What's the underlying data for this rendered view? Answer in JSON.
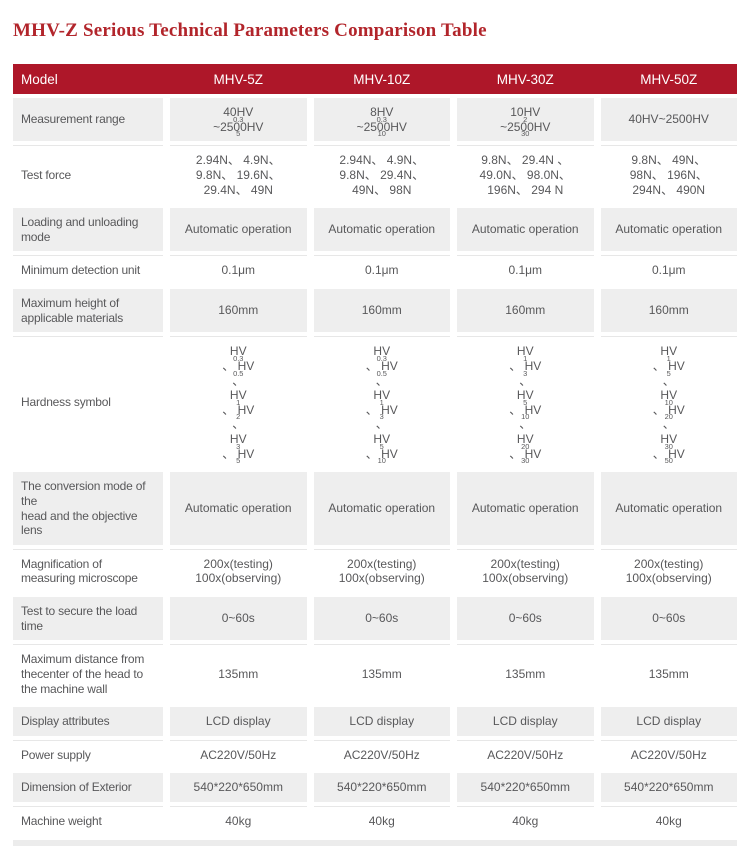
{
  "title": "MHV-Z Serious Technical Parameters Comparison Table",
  "colors": {
    "brand_red": "#ae1729",
    "title_red": "#b2252b",
    "alt_row_bg": "#eeeeee",
    "body_text": "#58585a",
    "header_text": "#ffffff"
  },
  "table": {
    "columns": [
      "Model",
      "MHV-5Z",
      "MHV-10Z",
      "MHV-30Z",
      "MHV-50Z"
    ],
    "rows": [
      {
        "label": "Measurement range",
        "values": [
          "40HV_{0.3}~2500HV_{5}",
          "8HV_{0.3}~2500HV_{10}",
          "10HV_{2}~2500HV_{30}",
          "40HV~2500HV"
        ]
      },
      {
        "label": "Test force",
        "values": [
          "2.94N、 4.9N、\n9.8N、 19.6N、\n29.4N、 49N",
          "2.94N、 4.9N、\n9.8N、 29.4N、\n49N、 98N",
          "9.8N、 29.4N 、\n49.0N、 98.0N、\n196N、 294 N",
          "9.8N、 49N、\n98N、 196N、\n294N、 490N"
        ]
      },
      {
        "label": "Loading and unloading mode",
        "values": [
          "Automatic operation",
          "Automatic operation",
          "Automatic operation",
          "Automatic operation"
        ]
      },
      {
        "label": "Minimum detection unit",
        "values": [
          "0.1μm",
          "0.1μm",
          "0.1μm",
          "0.1μm"
        ]
      },
      {
        "label": "Maximum height of\napplicable materials",
        "values": [
          "160mm",
          "160mm",
          "160mm",
          "160mm"
        ]
      },
      {
        "label": "Hardness symbol",
        "values": [
          "HV_{0.3}、 HV_{0.5}、\nHV_{1}、 HV_{2}、\nHV_{3}、 HV_{5}",
          "HV_{0.3}、 HV_{0.5}、\nHV_{1}、 HV_{3}、\nHV_{5}、 HV_{10}",
          "HV_{1}、 HV_{3}、\nHV_{5}、 HV_{10}、\nHV_{20}、 HV_{30}",
          "HV_{1}、 HV_{5}、\nHV_{10}、 HV_{20}、\nHV_{30}、 HV_{50}"
        ]
      },
      {
        "label": "The conversion mode of the\nhead and the objective lens",
        "values": [
          "Automatic operation",
          "Automatic operation",
          "Automatic operation",
          "Automatic operation"
        ]
      },
      {
        "label": "Magnification of\nmeasuring microscope",
        "values": [
          "200x(testing)\n100x(observing)",
          "200x(testing)\n100x(observing)",
          "200x(testing)\n100x(observing)",
          "200x(testing)\n100x(observing)"
        ]
      },
      {
        "label": "Test to secure the load time",
        "values": [
          "0~60s",
          "0~60s",
          "0~60s",
          "0~60s"
        ]
      },
      {
        "label": "Maximum distance from\nthecenter of the head to\nthe machine wall",
        "values": [
          "135mm",
          "135mm",
          "135mm",
          "135mm"
        ]
      },
      {
        "label": "Display attributes",
        "values": [
          "LCD display",
          "LCD display",
          "LCD display",
          "LCD display"
        ]
      },
      {
        "label": "Power supply",
        "values": [
          "AC220V/50Hz",
          "AC220V/50Hz",
          "AC220V/50Hz",
          "AC220V/50Hz"
        ]
      },
      {
        "label": "Dimension of Exterior",
        "values": [
          "540*220*650mm",
          "540*220*650mm",
          "540*220*650mm",
          "540*220*650mm"
        ]
      },
      {
        "label": "Machine weight",
        "values": [
          "40kg",
          "40kg",
          "40kg",
          "40kg"
        ]
      }
    ]
  }
}
